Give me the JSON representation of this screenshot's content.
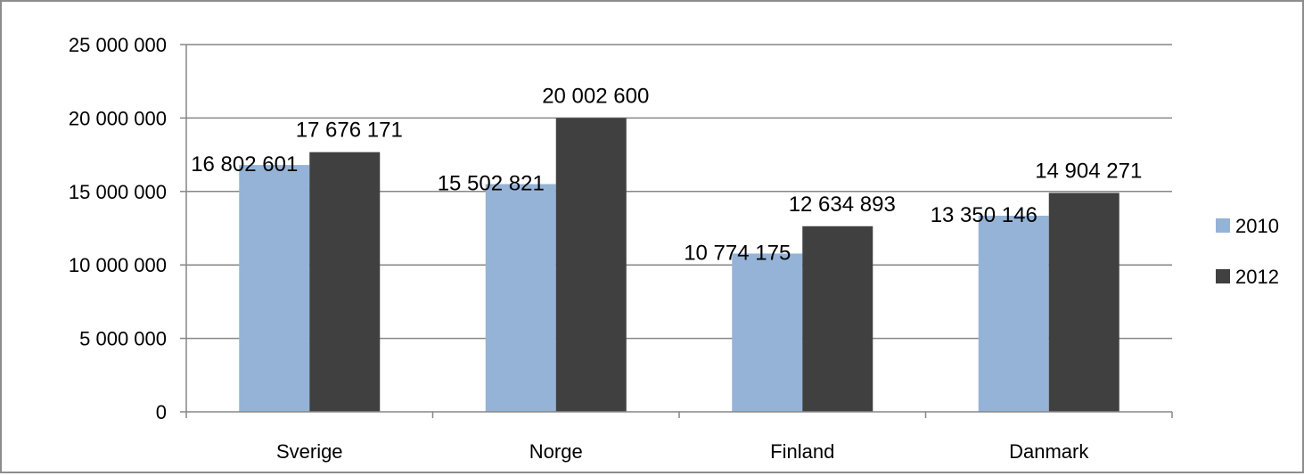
{
  "chart_data": {
    "type": "bar",
    "title": "",
    "xlabel": "",
    "ylabel": "",
    "categories": [
      "Sverige",
      "Norge",
      "Finland",
      "Danmark"
    ],
    "series": [
      {
        "name": "2010",
        "color": "#95b3d7",
        "values": [
          16802601,
          15502821,
          10774175,
          13350146
        ],
        "labels": [
          "16 802 601",
          "15 502 821",
          "10 774 175",
          "13 350 146"
        ]
      },
      {
        "name": "2012",
        "color": "#404040",
        "values": [
          17676171,
          20002600,
          12634893,
          14904271
        ],
        "labels": [
          "17 676 171",
          "20 002 600",
          "12 634 893",
          "14 904 271"
        ]
      }
    ],
    "ylim": [
      0,
      25000000
    ],
    "yticks": [
      0,
      5000000,
      10000000,
      15000000,
      20000000,
      25000000
    ],
    "ytick_labels": [
      "0",
      "5 000 000",
      "10 000 000",
      "15 000 000",
      "20 000 000",
      "25 000 000"
    ],
    "grid": true,
    "legend_position": "right"
  }
}
